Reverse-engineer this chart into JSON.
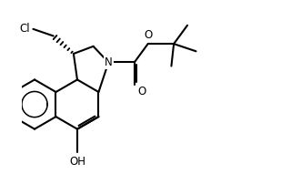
{
  "bg_color": "#ffffff",
  "line_color": "#000000",
  "lw": 1.5,
  "fig_width": 3.2,
  "fig_height": 2.02,
  "dpi": 100,
  "xlim": [
    -0.5,
    9.5
  ],
  "ylim": [
    -3.2,
    4.2
  ],
  "label_fontsize": 8.5
}
